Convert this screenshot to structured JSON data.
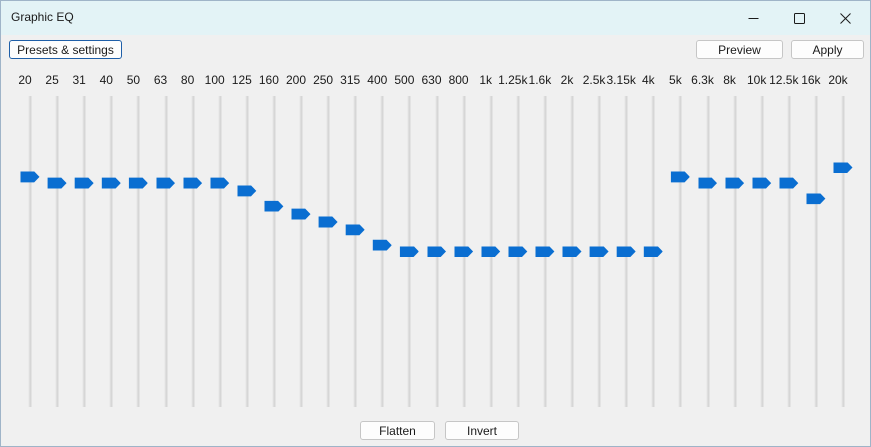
{
  "window": {
    "title": "Graphic EQ"
  },
  "toolbar": {
    "presets_label": "Presets & settings",
    "preview_label": "Preview",
    "apply_label": "Apply"
  },
  "footer": {
    "flatten_label": "Flatten",
    "invert_label": "Invert"
  },
  "colors": {
    "accent": "#0a6ed1",
    "titlebar": "#e3f3f6",
    "window_bg": "#f0f0f0"
  },
  "eq": {
    "level_note": "slider level as fraction of track (0 = bottom, 1 = top)",
    "bands": [
      {
        "label": "20",
        "level": 0.74
      },
      {
        "label": "25",
        "level": 0.72
      },
      {
        "label": "31",
        "level": 0.72
      },
      {
        "label": "40",
        "level": 0.72
      },
      {
        "label": "50",
        "level": 0.72
      },
      {
        "label": "63",
        "level": 0.72
      },
      {
        "label": "80",
        "level": 0.72
      },
      {
        "label": "100",
        "level": 0.72
      },
      {
        "label": "125",
        "level": 0.695
      },
      {
        "label": "160",
        "level": 0.645
      },
      {
        "label": "200",
        "level": 0.62
      },
      {
        "label": "250",
        "level": 0.595
      },
      {
        "label": "315",
        "level": 0.57
      },
      {
        "label": "400",
        "level": 0.52
      },
      {
        "label": "500",
        "level": 0.5
      },
      {
        "label": "630",
        "level": 0.5
      },
      {
        "label": "800",
        "level": 0.5
      },
      {
        "label": "1k",
        "level": 0.5
      },
      {
        "label": "1.25k",
        "level": 0.5
      },
      {
        "label": "1.6k",
        "level": 0.5
      },
      {
        "label": "2k",
        "level": 0.5
      },
      {
        "label": "2.5k",
        "level": 0.5
      },
      {
        "label": "3.15k",
        "level": 0.5
      },
      {
        "label": "4k",
        "level": 0.5
      },
      {
        "label": "5k",
        "level": 0.74
      },
      {
        "label": "6.3k",
        "level": 0.72
      },
      {
        "label": "8k",
        "level": 0.72
      },
      {
        "label": "10k",
        "level": 0.72
      },
      {
        "label": "12.5k",
        "level": 0.72
      },
      {
        "label": "16k",
        "level": 0.67
      },
      {
        "label": "20k",
        "level": 0.77
      }
    ]
  }
}
